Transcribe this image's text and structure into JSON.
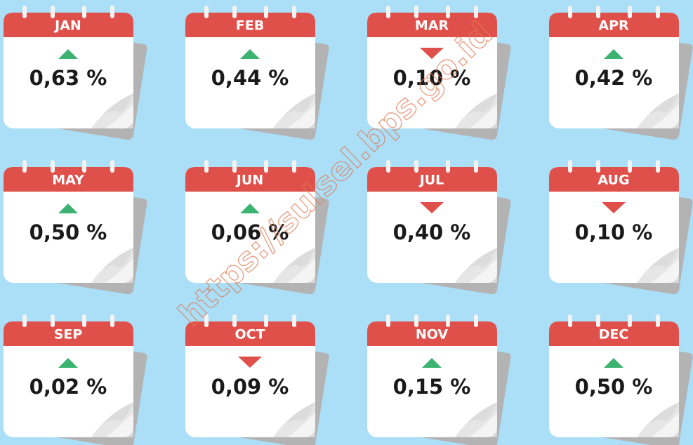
{
  "months": [
    {
      "label": "JAN",
      "value": "0,63 %",
      "direction": "up"
    },
    {
      "label": "FEB",
      "value": "0,44 %",
      "direction": "up"
    },
    {
      "label": "MAR",
      "value": "0,10 %",
      "direction": "down"
    },
    {
      "label": "APR",
      "value": "0,42 %",
      "direction": "up"
    },
    {
      "label": "MAY",
      "value": "0,50 %",
      "direction": "up"
    },
    {
      "label": "JUN",
      "value": "0,06 %",
      "direction": "up"
    },
    {
      "label": "JUL",
      "value": "0,40 %",
      "direction": "down"
    },
    {
      "label": "AUG",
      "value": "0,10 %",
      "direction": "down"
    },
    {
      "label": "SEP",
      "value": "0,02 %",
      "direction": "up"
    },
    {
      "label": "OCT",
      "value": "0,09 %",
      "direction": "down"
    },
    {
      "label": "NOV",
      "value": "0,15 %",
      "direction": "up"
    },
    {
      "label": "DEC",
      "value": "0,50 %",
      "direction": "up"
    }
  ],
  "watermark": "https://sulsel.bps.go.id"
}
